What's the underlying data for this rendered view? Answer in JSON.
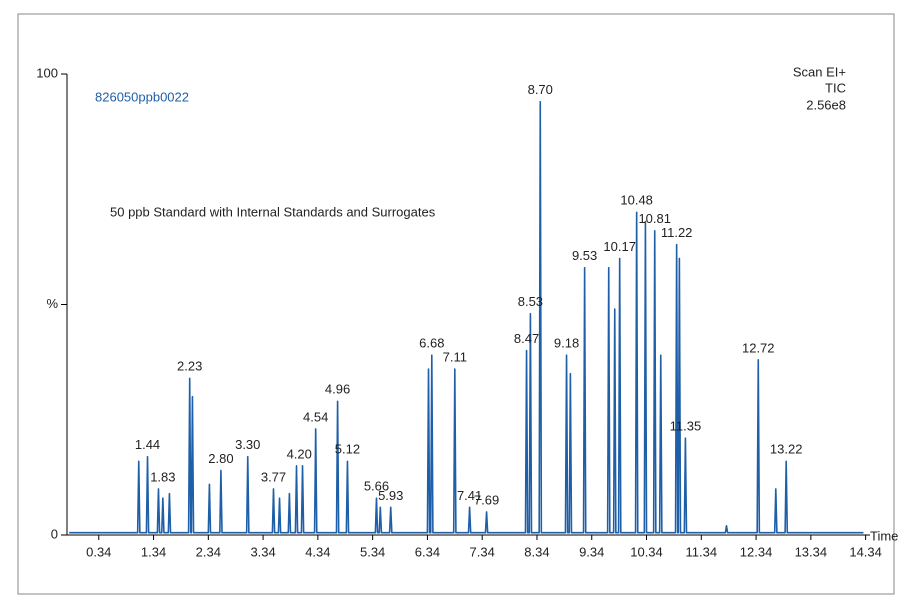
{
  "chart_data": {
    "type": "line",
    "sample_id": "826050ppb0022",
    "subtitle": "50 ppb Standard with Internal Standards and Surrogates",
    "scan_info": [
      "Scan EI+",
      "TIC",
      "2.56e8"
    ],
    "x_label": "Time",
    "xlim": [
      -0.24,
      14.42
    ],
    "ylim": [
      0,
      100
    ],
    "xticks": [
      0.34,
      1.34,
      2.34,
      3.34,
      4.34,
      5.34,
      6.34,
      7.34,
      8.34,
      9.34,
      10.34,
      11.34,
      12.34,
      13.34,
      14.34
    ],
    "yticks": [
      0,
      {
        "value": 50,
        "label": "%"
      },
      100
    ],
    "x": [
      -0.2,
      1.05,
      1.07,
      1.09,
      1.21,
      1.23,
      1.25,
      1.41,
      1.43,
      1.45,
      1.49,
      1.51,
      1.53,
      1.61,
      1.63,
      1.65,
      1.98,
      2.0,
      2.02,
      2.03,
      2.05,
      2.07,
      2.34,
      2.36,
      2.38,
      2.55,
      2.57,
      2.59,
      3.04,
      3.06,
      3.08,
      3.51,
      3.53,
      3.55,
      3.62,
      3.64,
      3.66,
      3.8,
      3.82,
      3.84,
      3.93,
      3.95,
      3.97,
      4.04,
      4.06,
      4.08,
      4.28,
      4.3,
      4.32,
      4.68,
      4.7,
      4.72,
      4.86,
      4.88,
      4.9,
      5.39,
      5.41,
      5.43,
      5.46,
      5.48,
      5.5,
      5.65,
      5.67,
      5.69,
      6.34,
      6.36,
      6.38,
      6.4,
      6.42,
      6.44,
      6.82,
      6.84,
      6.86,
      7.09,
      7.11,
      7.13,
      7.4,
      7.42,
      7.44,
      8.13,
      8.15,
      8.17,
      8.2,
      8.22,
      8.24,
      8.38,
      8.4,
      8.42,
      8.86,
      8.88,
      8.9,
      8.93,
      8.95,
      8.97,
      9.19,
      9.21,
      9.23,
      9.63,
      9.65,
      9.67,
      9.74,
      9.76,
      9.78,
      9.83,
      9.85,
      9.87,
      10.14,
      10.16,
      10.18,
      10.3,
      10.32,
      10.34,
      10.47,
      10.49,
      10.51,
      10.58,
      10.6,
      10.62,
      10.87,
      10.89,
      10.91,
      10.92,
      10.94,
      10.96,
      11.03,
      11.05,
      11.07,
      11.78,
      11.8,
      11.82,
      12.36,
      12.38,
      12.4,
      12.68,
      12.7,
      12.72,
      12.87,
      12.89,
      12.91,
      14.3
    ],
    "series": [
      {
        "color": "#1f5fa8",
        "values": [
          0.5,
          0.5,
          16,
          0.5,
          0.5,
          17,
          0.5,
          0.5,
          10,
          0.5,
          0.5,
          8,
          0.5,
          0.5,
          9,
          0.5,
          0.5,
          34,
          0.5,
          0.5,
          30,
          0.5,
          0.5,
          11,
          0.5,
          0.5,
          14,
          0.5,
          0.5,
          17,
          0.5,
          0.5,
          10,
          0.5,
          0.5,
          8,
          0.5,
          0.5,
          9,
          0.5,
          0.5,
          15,
          0.5,
          0.5,
          15,
          0.5,
          0.5,
          23,
          0.5,
          0.5,
          29,
          0.5,
          0.5,
          16,
          0.5,
          0.5,
          8,
          0.5,
          0.5,
          6,
          0.5,
          0.5,
          6,
          0.5,
          0.5,
          36,
          0.5,
          0.5,
          39,
          0.5,
          0.5,
          36,
          0.5,
          0.5,
          6,
          0.5,
          0.5,
          5,
          0.5,
          0.5,
          40,
          0.5,
          0.5,
          48,
          0.5,
          0.5,
          94,
          0.5,
          0.5,
          39,
          0.5,
          0.5,
          35,
          0.5,
          0.5,
          58,
          0.5,
          0.5,
          58,
          0.5,
          0.5,
          49,
          0.5,
          0.5,
          60,
          0.5,
          0.5,
          70,
          0.5,
          0.5,
          68,
          0.5,
          0.5,
          66,
          0.5,
          0.5,
          39,
          0.5,
          0.5,
          63,
          0.5,
          0.5,
          60,
          0.5,
          0.5,
          21,
          0.5,
          0.5,
          2,
          0.5,
          0.5,
          38,
          0.5,
          0.5,
          10,
          0.5,
          0.5,
          16,
          0.5,
          0.5
        ]
      }
    ],
    "annotations": [
      {
        "text": "1.44",
        "x": 1.23,
        "y": 17
      },
      {
        "text": "1.83",
        "x": 1.51,
        "y": 10
      },
      {
        "text": "2.23",
        "x": 2.0,
        "y": 34
      },
      {
        "text": "2.80",
        "x": 2.57,
        "y": 14
      },
      {
        "text": "3.30",
        "x": 3.06,
        "y": 17
      },
      {
        "text": "3.77",
        "x": 3.53,
        "y": 10
      },
      {
        "text": "4.20",
        "x": 4.0,
        "y": 15
      },
      {
        "text": "4.54",
        "x": 4.3,
        "y": 23
      },
      {
        "text": "4.96",
        "x": 4.7,
        "y": 29
      },
      {
        "text": "5.12",
        "x": 4.88,
        "y": 16
      },
      {
        "text": "5.66",
        "x": 5.41,
        "y": 8
      },
      {
        "text": "5.93",
        "x": 5.67,
        "y": 6
      },
      {
        "text": "6.68",
        "x": 6.42,
        "y": 39
      },
      {
        "text": "7.11",
        "x": 6.84,
        "y": 36
      },
      {
        "text": "7.41",
        "x": 7.11,
        "y": 6
      },
      {
        "text": "7.69",
        "x": 7.42,
        "y": 5
      },
      {
        "text": "8.47",
        "x": 8.15,
        "y": 40
      },
      {
        "text": "8.53",
        "x": 8.22,
        "y": 48
      },
      {
        "text": "8.70",
        "x": 8.4,
        "y": 94
      },
      {
        "text": "9.18",
        "x": 8.88,
        "y": 39
      },
      {
        "text": "9.53",
        "x": 9.21,
        "y": 58
      },
      {
        "text": "10.17",
        "x": 9.85,
        "y": 60
      },
      {
        "text": "10.48",
        "x": 10.16,
        "y": 70
      },
      {
        "text": "10.81",
        "x": 10.49,
        "y": 66
      },
      {
        "text": "11.22",
        "x": 10.89,
        "y": 63
      },
      {
        "text": "11.35",
        "x": 11.05,
        "y": 21
      },
      {
        "text": "12.72",
        "x": 12.38,
        "y": 38
      },
      {
        "text": "13.22",
        "x": 12.89,
        "y": 16
      }
    ]
  }
}
